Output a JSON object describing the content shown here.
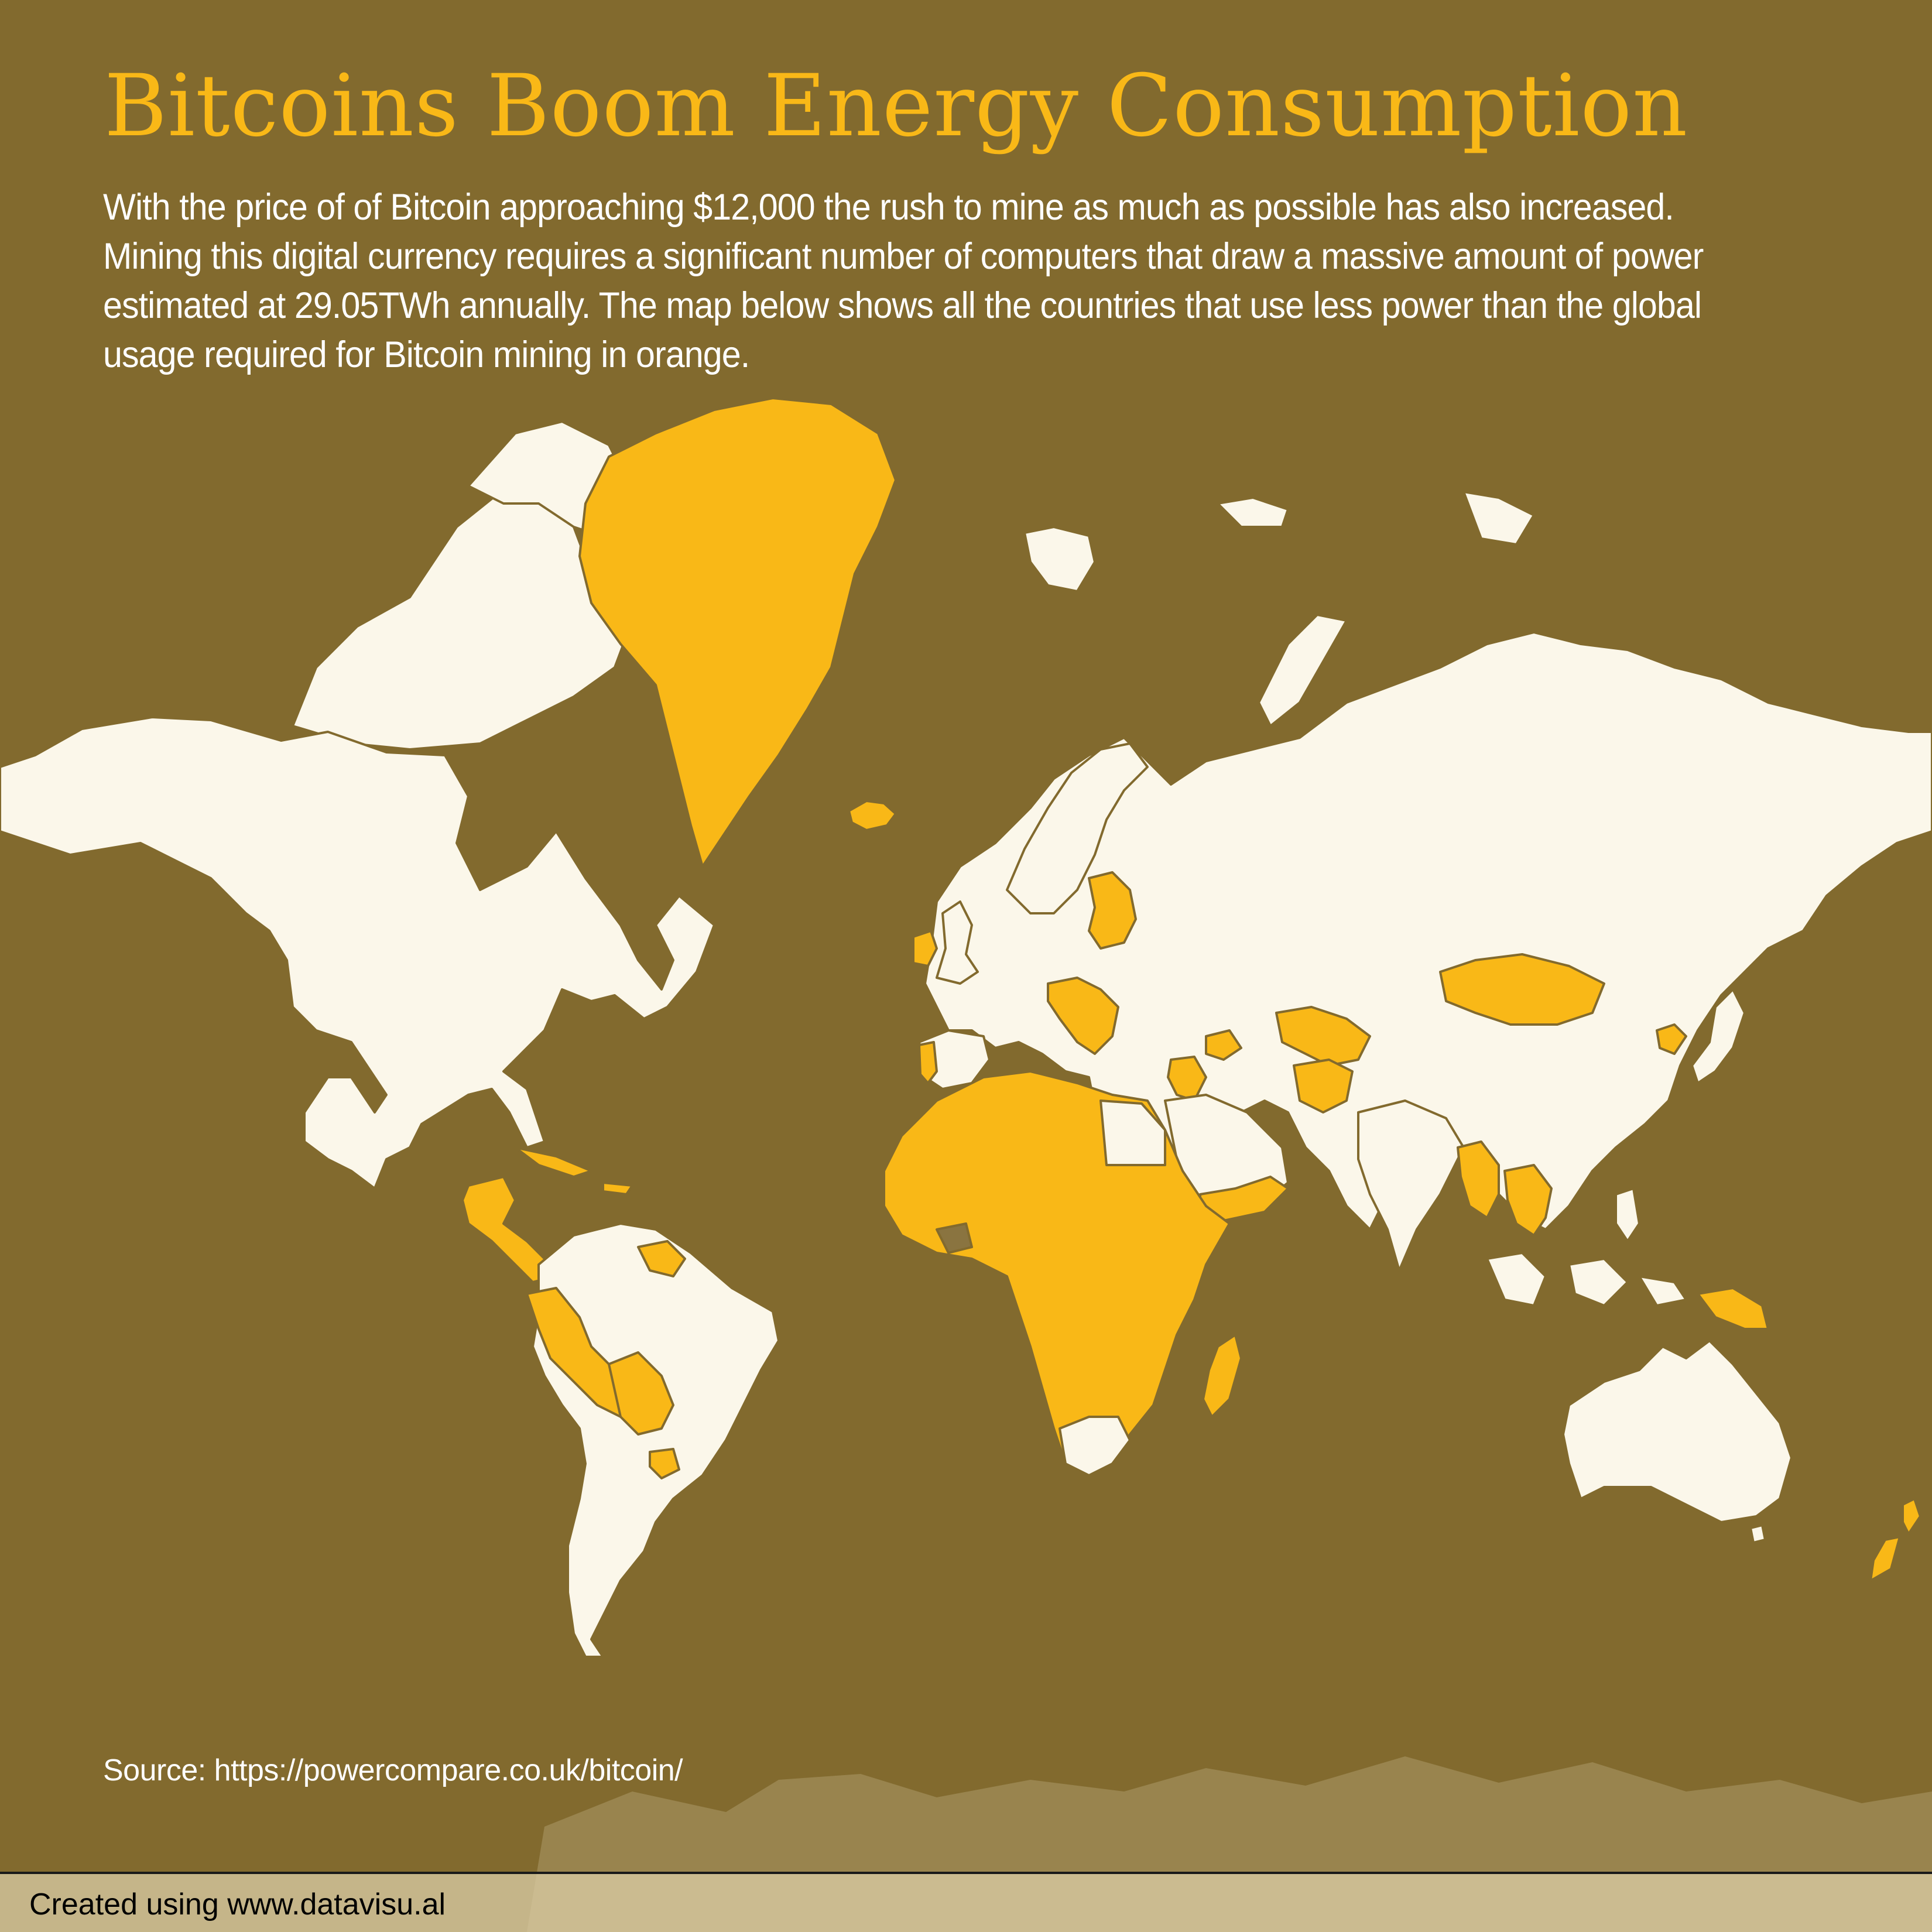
{
  "title": "Bitcoins Boom Energy Consumption",
  "intro": "With the price of of Bitcoin approaching $12,000 the rush to mine as much as possible has also increased. Mining this digital currency requires a significant number of computers that draw a massive amount of power estimated at 29.05TWh annually. The map below shows all the countries that use less power than the global usage required for Bitcoin mining in orange.",
  "source": "Source: https://powercompare.co.uk/bitcoin/",
  "footer": {
    "credit": "Created using www.datavisu.al"
  },
  "colors": {
    "background": "#826a2e",
    "land_default": "#fbf7ea",
    "land_highlight": "#f9b817",
    "border": "#826a2e",
    "no_data": "#8a7440",
    "antarctica": "#a08d5a",
    "title": "#f9b817",
    "text": "#ffffff",
    "footer_text": "#000000"
  },
  "map": {
    "highlighted_regions": [
      "Greenland",
      "Iceland",
      "Ireland",
      "Portugal",
      "Baltic States",
      "Belarus",
      "Balkans",
      "Central America",
      "Caribbean",
      "Andean & Paraguay region",
      "Guyanas",
      "Uruguay",
      "North & Central Africa",
      "Madagascar",
      "Mongolia",
      "Central Asia",
      "Afghanistan",
      "Yemen & Oman",
      "Syria & Jordan",
      "Bangladesh & Myanmar",
      "Southeast Asia",
      "North Korea",
      "Papua New Guinea",
      "New Zealand"
    ]
  }
}
